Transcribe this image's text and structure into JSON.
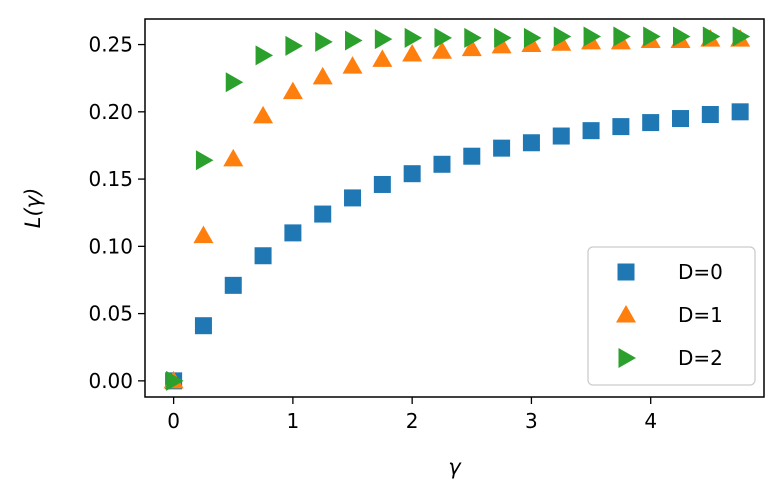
{
  "chart_data": {
    "type": "scatter",
    "xlabel": "γ",
    "ylabel": "L(γ)",
    "xlim": [
      -0.24,
      4.95
    ],
    "ylim": [
      -0.012,
      0.269
    ],
    "xticks": [
      0,
      1,
      2,
      3,
      4
    ],
    "yticks": [
      0.0,
      0.05,
      0.1,
      0.15,
      0.2,
      0.25
    ],
    "ytick_labels": [
      "0.00",
      "0.05",
      "0.10",
      "0.15",
      "0.20",
      "0.25"
    ],
    "grid": false,
    "legend_position": "lower-right",
    "x": [
      0,
      0.25,
      0.5,
      0.75,
      1.0,
      1.25,
      1.5,
      1.75,
      2.0,
      2.25,
      2.5,
      2.75,
      3.0,
      3.25,
      3.5,
      3.75,
      4.0,
      4.25,
      4.5,
      4.75
    ],
    "series": [
      {
        "name": "D=0",
        "marker": "square",
        "color": "#1f77b4",
        "values": [
          0.0,
          0.041,
          0.071,
          0.093,
          0.11,
          0.124,
          0.136,
          0.146,
          0.154,
          0.161,
          0.167,
          0.173,
          0.177,
          0.182,
          0.186,
          0.189,
          0.192,
          0.195,
          0.198,
          0.2
        ]
      },
      {
        "name": "D=1",
        "marker": "triangle-up",
        "color": "#ff7f0e",
        "values": [
          0.0,
          0.108,
          0.165,
          0.197,
          0.215,
          0.226,
          0.234,
          0.239,
          0.243,
          0.245,
          0.247,
          0.249,
          0.25,
          0.251,
          0.252,
          0.252,
          0.253,
          0.253,
          0.254,
          0.254
        ]
      },
      {
        "name": "D=2",
        "marker": "triangle-right",
        "color": "#2ca02c",
        "values": [
          0.0,
          0.164,
          0.222,
          0.242,
          0.249,
          0.252,
          0.253,
          0.254,
          0.255,
          0.255,
          0.255,
          0.255,
          0.255,
          0.256,
          0.256,
          0.256,
          0.256,
          0.256,
          0.256,
          0.256
        ]
      }
    ]
  }
}
